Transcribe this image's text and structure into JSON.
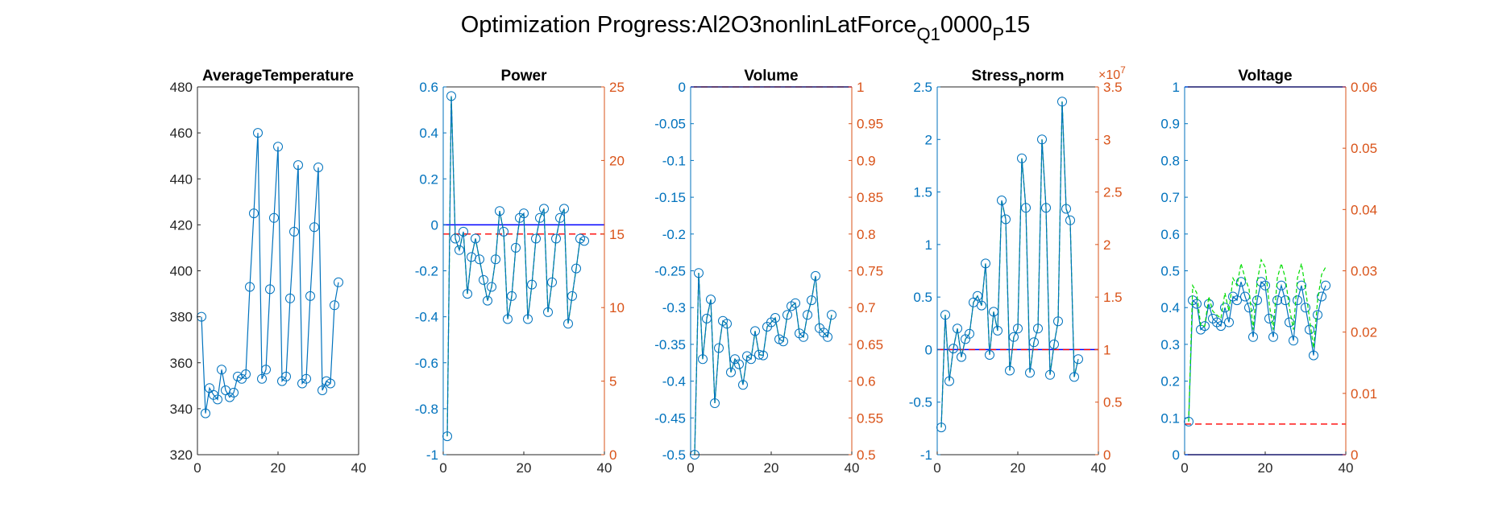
{
  "figure": {
    "title_main": "Optimization Progress:Al2O3nonlinLatForce",
    "title_sub1": "Q1",
    "title_mid": "0000",
    "title_sub2": "P",
    "title_end": "15"
  },
  "colors": {
    "left_axis": "#0072BD",
    "right_axis": "#D95319",
    "series_blue": "#0072BD",
    "series_green": "#00DD00",
    "ref_blue": "#0000FF",
    "ref_red": "#FF0000",
    "axes_black": "#262626"
  },
  "chart_data": [
    {
      "type": "line",
      "title": "AverageTemperature",
      "xlim": [
        0,
        40
      ],
      "xticks": [
        0,
        20,
        40
      ],
      "ylim": [
        320,
        480
      ],
      "yticks": [
        320,
        340,
        360,
        380,
        400,
        420,
        440,
        460,
        480
      ],
      "ytick_labels": [
        "320",
        "340",
        "360",
        "380",
        "400",
        "420",
        "440",
        "460",
        "480"
      ],
      "series": [
        {
          "x": [
            1,
            2,
            3,
            4,
            5,
            6,
            7,
            8,
            9,
            10,
            11,
            12,
            13,
            14,
            15,
            16,
            17,
            18,
            19,
            20,
            21,
            22,
            23,
            24,
            25,
            26,
            27,
            28,
            29,
            30,
            31,
            32,
            33,
            34,
            35
          ],
          "values": [
            380,
            338,
            349,
            346,
            344,
            357,
            348,
            345,
            347,
            354,
            353,
            355,
            393,
            425,
            460,
            353,
            357,
            392,
            423,
            454,
            352,
            354,
            388,
            417,
            446,
            351,
            353,
            389,
            419,
            445,
            348,
            352,
            351,
            385,
            395
          ]
        }
      ]
    },
    {
      "type": "line",
      "title": "Power",
      "xlim": [
        0,
        40
      ],
      "xticks": [
        0,
        20,
        40
      ],
      "ylim": [
        -1,
        0.6
      ],
      "yticks": [
        -1,
        -0.8,
        -0.6,
        -0.4,
        -0.2,
        0,
        0.2,
        0.4,
        0.6
      ],
      "ytick_labels": [
        "-1",
        "-0.8",
        "-0.6",
        "-0.4",
        "-0.2",
        "0",
        "0.2",
        "0.4",
        "0.6"
      ],
      "y2lim": [
        0,
        25
      ],
      "y2ticks": [
        0,
        5,
        10,
        15,
        20,
        25
      ],
      "y2tick_labels": [
        "0",
        "5",
        "10",
        "15",
        "20",
        "25"
      ],
      "ref_blue_y": 0,
      "ref_red_y2": 15,
      "series": [
        {
          "x": [
            1,
            2,
            3,
            4,
            5,
            6,
            7,
            8,
            9,
            10,
            11,
            12,
            13,
            14,
            15,
            16,
            17,
            18,
            19,
            20,
            21,
            22,
            23,
            24,
            25,
            26,
            27,
            28,
            29,
            30,
            31,
            32,
            33,
            34,
            35
          ],
          "values": [
            -0.92,
            0.56,
            -0.06,
            -0.11,
            -0.03,
            -0.3,
            -0.14,
            -0.06,
            -0.15,
            -0.24,
            -0.33,
            -0.27,
            -0.15,
            0.06,
            -0.03,
            -0.41,
            -0.31,
            -0.1,
            0.03,
            0.05,
            -0.41,
            -0.26,
            -0.06,
            0.03,
            0.07,
            -0.38,
            -0.25,
            -0.06,
            0.03,
            0.07,
            -0.43,
            -0.31,
            -0.19,
            -0.06,
            -0.07
          ]
        }
      ]
    },
    {
      "type": "line",
      "title": "Volume",
      "xlim": [
        0,
        40
      ],
      "xticks": [
        0,
        20,
        40
      ],
      "ylim": [
        -0.5,
        0
      ],
      "yticks": [
        -0.5,
        -0.45,
        -0.4,
        -0.35,
        -0.3,
        -0.25,
        -0.2,
        -0.15,
        -0.1,
        -0.05,
        0
      ],
      "ytick_labels": [
        "-0.5",
        "-0.45",
        "-0.4",
        "-0.35",
        "-0.3",
        "-0.25",
        "-0.2",
        "-0.15",
        "-0.1",
        "-0.05",
        "0"
      ],
      "y2lim": [
        0.5,
        1
      ],
      "y2ticks": [
        0.5,
        0.55,
        0.6,
        0.65,
        0.7,
        0.75,
        0.8,
        0.85,
        0.9,
        0.95,
        1
      ],
      "y2tick_labels": [
        "0.5",
        "0.55",
        "0.6",
        "0.65",
        "0.7",
        "0.75",
        "0.8",
        "0.85",
        "0.9",
        "0.95",
        "1"
      ],
      "ref_blue_y": 0,
      "ref_red_y2": 1,
      "series": [
        {
          "x": [
            1,
            2,
            3,
            4,
            5,
            6,
            7,
            8,
            9,
            10,
            11,
            12,
            13,
            14,
            15,
            16,
            17,
            18,
            19,
            20,
            21,
            22,
            23,
            24,
            25,
            26,
            27,
            28,
            29,
            30,
            31,
            32,
            33,
            34,
            35
          ],
          "values": [
            -0.5,
            -0.253,
            -0.37,
            -0.315,
            -0.289,
            -0.43,
            -0.355,
            -0.318,
            -0.322,
            -0.388,
            -0.37,
            -0.377,
            -0.405,
            -0.366,
            -0.37,
            -0.332,
            -0.364,
            -0.365,
            -0.326,
            -0.32,
            -0.314,
            -0.343,
            -0.346,
            -0.31,
            -0.298,
            -0.294,
            -0.335,
            -0.34,
            -0.31,
            -0.29,
            -0.257,
            -0.328,
            -0.334,
            -0.34,
            -0.31
          ]
        }
      ]
    },
    {
      "type": "line",
      "title": "Stress",
      "title_sub": "P",
      "title_end": "norm",
      "xlim": [
        0,
        40
      ],
      "xticks": [
        0,
        20,
        40
      ],
      "ylim": [
        -1,
        2.5
      ],
      "yticks": [
        -1,
        -0.5,
        0,
        0.5,
        1,
        1.5,
        2,
        2.5
      ],
      "ytick_labels": [
        "-1",
        "-0.5",
        "0",
        "0.5",
        "1",
        "1.5",
        "2",
        "2.5"
      ],
      "y2lim": [
        0,
        3.5
      ],
      "y2ticks": [
        0,
        0.5,
        1,
        1.5,
        2,
        2.5,
        3,
        3.5
      ],
      "y2tick_labels": [
        "0",
        "0.5",
        "1",
        "1.5",
        "2",
        "2.5",
        "3",
        "3.5"
      ],
      "y2_exponent_base": "×10",
      "y2_exponent_power": "7",
      "ref_blue_y": 0,
      "ref_red_y2": 1,
      "series": [
        {
          "x": [
            1,
            2,
            3,
            4,
            5,
            6,
            7,
            8,
            9,
            10,
            11,
            12,
            13,
            14,
            15,
            16,
            17,
            18,
            19,
            20,
            21,
            22,
            23,
            24,
            25,
            26,
            27,
            28,
            29,
            30,
            31,
            32,
            33,
            34,
            35
          ],
          "values": [
            -0.74,
            0.33,
            -0.3,
            0.01,
            0.2,
            -0.07,
            0.1,
            0.15,
            0.45,
            0.51,
            0.42,
            0.82,
            -0.05,
            0.36,
            0.18,
            1.42,
            1.24,
            -0.2,
            0.12,
            0.2,
            1.82,
            1.35,
            -0.22,
            0.07,
            0.2,
            2.0,
            1.35,
            -0.24,
            0.05,
            0.27,
            2.36,
            1.34,
            1.23,
            -0.26,
            -0.09
          ]
        }
      ]
    },
    {
      "type": "line",
      "title": "Voltage",
      "xlim": [
        0,
        40
      ],
      "xticks": [
        0,
        20,
        40
      ],
      "ylim": [
        0,
        1
      ],
      "yticks": [
        0,
        0.1,
        0.2,
        0.3,
        0.4,
        0.5,
        0.6,
        0.7,
        0.8,
        0.9,
        1
      ],
      "ytick_labels": [
        "0",
        "0.1",
        "0.2",
        "0.3",
        "0.4",
        "0.5",
        "0.6",
        "0.7",
        "0.8",
        "0.9",
        "1"
      ],
      "y2lim": [
        0,
        0.06
      ],
      "y2ticks": [
        0,
        0.01,
        0.02,
        0.03,
        0.04,
        0.05,
        0.06
      ],
      "y2tick_labels": [
        "0",
        "0.01",
        "0.02",
        "0.03",
        "0.04",
        "0.05",
        "0.06"
      ],
      "ref_blue_y": 1,
      "ref_blue_y_bottom": 0,
      "ref_red_y2": 0.005,
      "series": [
        {
          "x": [
            1,
            2,
            3,
            4,
            5,
            6,
            7,
            8,
            9,
            10,
            11,
            12,
            13,
            14,
            15,
            16,
            17,
            18,
            19,
            20,
            21,
            22,
            23,
            24,
            25,
            26,
            27,
            28,
            29,
            30,
            31,
            32,
            33,
            34,
            35
          ],
          "values": [
            0.09,
            0.42,
            0.41,
            0.34,
            0.35,
            0.41,
            0.37,
            0.36,
            0.35,
            0.4,
            0.36,
            0.43,
            0.42,
            0.47,
            0.43,
            0.4,
            0.32,
            0.42,
            0.47,
            0.46,
            0.37,
            0.32,
            0.42,
            0.46,
            0.42,
            0.36,
            0.31,
            0.42,
            0.46,
            0.4,
            0.34,
            0.27,
            0.38,
            0.43,
            0.46
          ]
        },
        {
          "x": [
            1,
            2,
            3,
            4,
            5,
            6,
            7,
            8,
            9,
            10,
            11,
            12,
            13,
            14,
            15,
            16,
            17,
            18,
            19,
            20,
            21,
            22,
            23,
            24,
            25,
            26,
            27,
            28,
            29,
            30,
            31,
            32,
            33,
            34,
            35
          ],
          "values": [
            0.09,
            0.46,
            0.44,
            0.35,
            0.35,
            0.43,
            0.39,
            0.38,
            0.37,
            0.44,
            0.39,
            0.48,
            0.46,
            0.52,
            0.48,
            0.45,
            0.34,
            0.47,
            0.53,
            0.51,
            0.41,
            0.34,
            0.48,
            0.52,
            0.48,
            0.4,
            0.34,
            0.48,
            0.52,
            0.45,
            0.37,
            0.29,
            0.42,
            0.49,
            0.51
          ]
        }
      ]
    }
  ]
}
